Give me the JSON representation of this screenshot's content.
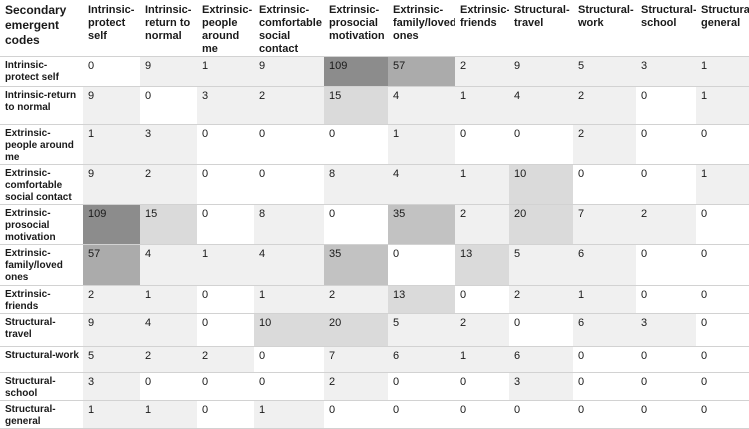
{
  "table": {
    "corner_label": "Secondary emergent codes",
    "columns": [
      "Intrinsic-protect self",
      "Intrinsic-return to normal",
      "Extrinsic-people around me",
      "Extrinsic-comfortable social contact",
      "Extrinsic-prosocial motivation",
      "Extrinsic-family/loved ones",
      "Extrinsic-friends",
      "Structural-travel",
      "Structural-work",
      "Structural-school",
      "Structural-general"
    ],
    "rows": [
      {
        "label": "Intrinsic-protect self",
        "values": [
          "0",
          "9",
          "1",
          "9",
          "109",
          "57",
          "2",
          "9",
          "5",
          "3",
          "1"
        ]
      },
      {
        "label": "Intrinsic-return to normal",
        "values": [
          "9",
          "0",
          "3",
          "2",
          "15",
          "4",
          "1",
          "4",
          "2",
          "0",
          "1"
        ]
      },
      {
        "label": "Extrinsic-people around me",
        "values": [
          "1",
          "3",
          "0",
          "0",
          "0",
          "1",
          "0",
          "0",
          "2",
          "0",
          "0"
        ]
      },
      {
        "label": "Extrinsic-comfortable social contact",
        "values": [
          "9",
          "2",
          "0",
          "0",
          "8",
          "4",
          "1",
          "10",
          "0",
          "0",
          "1"
        ]
      },
      {
        "label": "Extrinsic-prosocial motivation",
        "values": [
          "109",
          "15",
          "0",
          "8",
          "0",
          "35",
          "2",
          "20",
          "7",
          "2",
          "0"
        ]
      },
      {
        "label": "Extrinsic-family/loved ones",
        "values": [
          "57",
          "4",
          "1",
          "4",
          "35",
          "0",
          "13",
          "5",
          "6",
          "0",
          "0"
        ]
      },
      {
        "label": "Extrinsic-friends",
        "values": [
          "2",
          "1",
          "0",
          "1",
          "2",
          "13",
          "0",
          "2",
          "1",
          "0",
          "0"
        ]
      },
      {
        "label": "Structural-travel",
        "values": [
          "9",
          "4",
          "0",
          "10",
          "20",
          "5",
          "2",
          "0",
          "6",
          "3",
          "0"
        ]
      },
      {
        "label": "Structural-work",
        "values": [
          "5",
          "2",
          "2",
          "0",
          "7",
          "6",
          "1",
          "6",
          "0",
          "0",
          "0"
        ]
      },
      {
        "label": "Structural-school",
        "values": [
          "3",
          "0",
          "0",
          "0",
          "2",
          "0",
          "0",
          "3",
          "0",
          "0",
          "0"
        ]
      },
      {
        "label": "Structural-general",
        "values": [
          "1",
          "1",
          "0",
          "1",
          "0",
          "0",
          "0",
          "0",
          "0",
          "0",
          "0"
        ]
      }
    ]
  }
}
